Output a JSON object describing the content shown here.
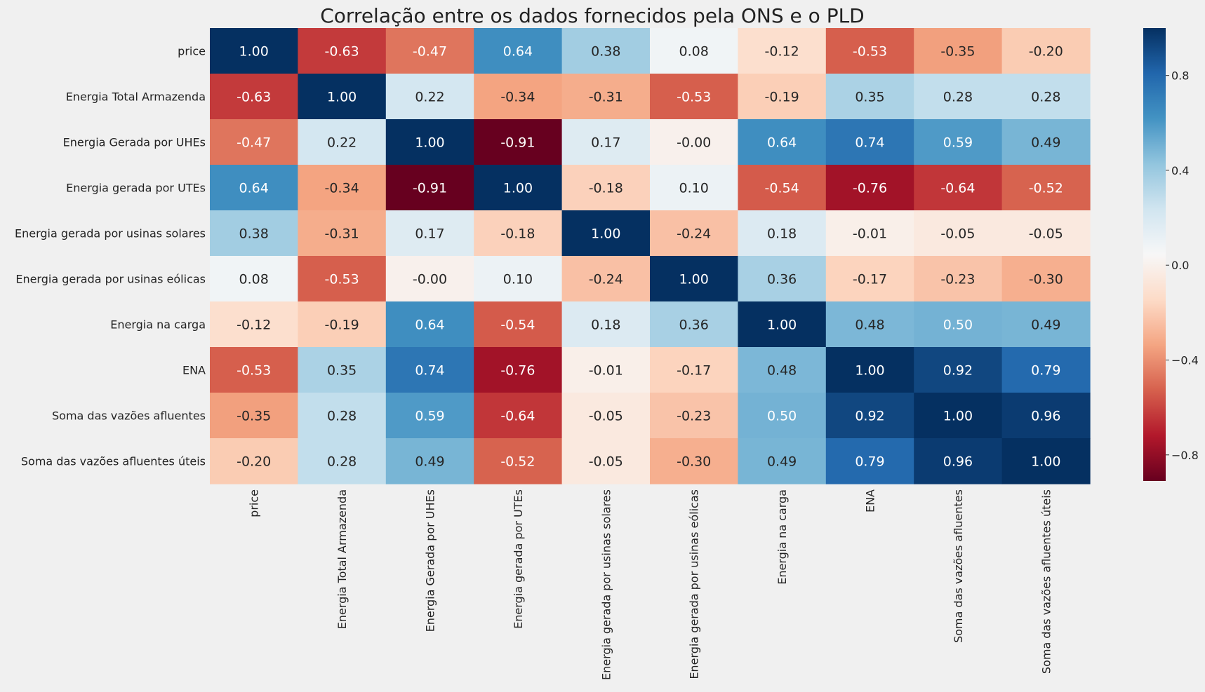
{
  "chart_data": {
    "type": "heatmap",
    "title": "Correlação entre os dados fornecidos pela ONS e o PLD",
    "rows": [
      "price",
      "Energia Total Armazenda",
      "Energia Gerada por UHEs",
      "Energia gerada por UTEs",
      "Energia gerada por usinas solares",
      "Energia gerada por usinas eólicas",
      "Energia na carga",
      "ENA",
      "Soma das vazões afluentes",
      "Soma das vazões afluentes úteis"
    ],
    "columns": [
      "price",
      "Energia Total Armazenda",
      "Energia Gerada por UHEs",
      "Energia gerada por UTEs",
      "Energia gerada por usinas solares",
      "Energia gerada por usinas eólicas",
      "Energia na carga",
      "ENA",
      "Soma das vazões afluentes",
      "Soma das vazões afluentes úteis"
    ],
    "values": [
      [
        "1.00",
        "-0.63",
        "-0.47",
        "0.64",
        "0.38",
        "0.08",
        "-0.12",
        "-0.53",
        "-0.35",
        "-0.20"
      ],
      [
        "-0.63",
        "1.00",
        "0.22",
        "-0.34",
        "-0.31",
        "-0.53",
        "-0.19",
        "0.35",
        "0.28",
        "0.28"
      ],
      [
        "-0.47",
        "0.22",
        "1.00",
        "-0.91",
        "0.17",
        "-0.00",
        "0.64",
        "0.74",
        "0.59",
        "0.49"
      ],
      [
        "0.64",
        "-0.34",
        "-0.91",
        "1.00",
        "-0.18",
        "0.10",
        "-0.54",
        "-0.76",
        "-0.64",
        "-0.52"
      ],
      [
        "0.38",
        "-0.31",
        "0.17",
        "-0.18",
        "1.00",
        "-0.24",
        "0.18",
        "-0.01",
        "-0.05",
        "-0.05"
      ],
      [
        "0.08",
        "-0.53",
        "-0.00",
        "0.10",
        "-0.24",
        "1.00",
        "0.36",
        "-0.17",
        "-0.23",
        "-0.30"
      ],
      [
        "-0.12",
        "-0.19",
        "0.64",
        "-0.54",
        "0.18",
        "0.36",
        "1.00",
        "0.48",
        "0.50",
        "0.49"
      ],
      [
        "-0.53",
        "0.35",
        "0.74",
        "-0.76",
        "-0.01",
        "-0.17",
        "0.48",
        "1.00",
        "0.92",
        "0.79"
      ],
      [
        "-0.35",
        "0.28",
        "0.59",
        "-0.64",
        "-0.05",
        "-0.23",
        "0.50",
        "0.92",
        "1.00",
        "0.96"
      ],
      [
        "-0.20",
        "0.28",
        "0.49",
        "-0.52",
        "-0.05",
        "-0.30",
        "0.49",
        "0.79",
        "0.96",
        "1.00"
      ]
    ],
    "colormap": "RdBu",
    "vmin": -0.91,
    "vmax": 1.0,
    "colorbar_ticks": [
      "0.8",
      "0.4",
      "0.0",
      "−0.4",
      "−0.8"
    ],
    "colorbar_tick_values": [
      0.8,
      0.4,
      0.0,
      -0.4,
      -0.8
    ]
  }
}
